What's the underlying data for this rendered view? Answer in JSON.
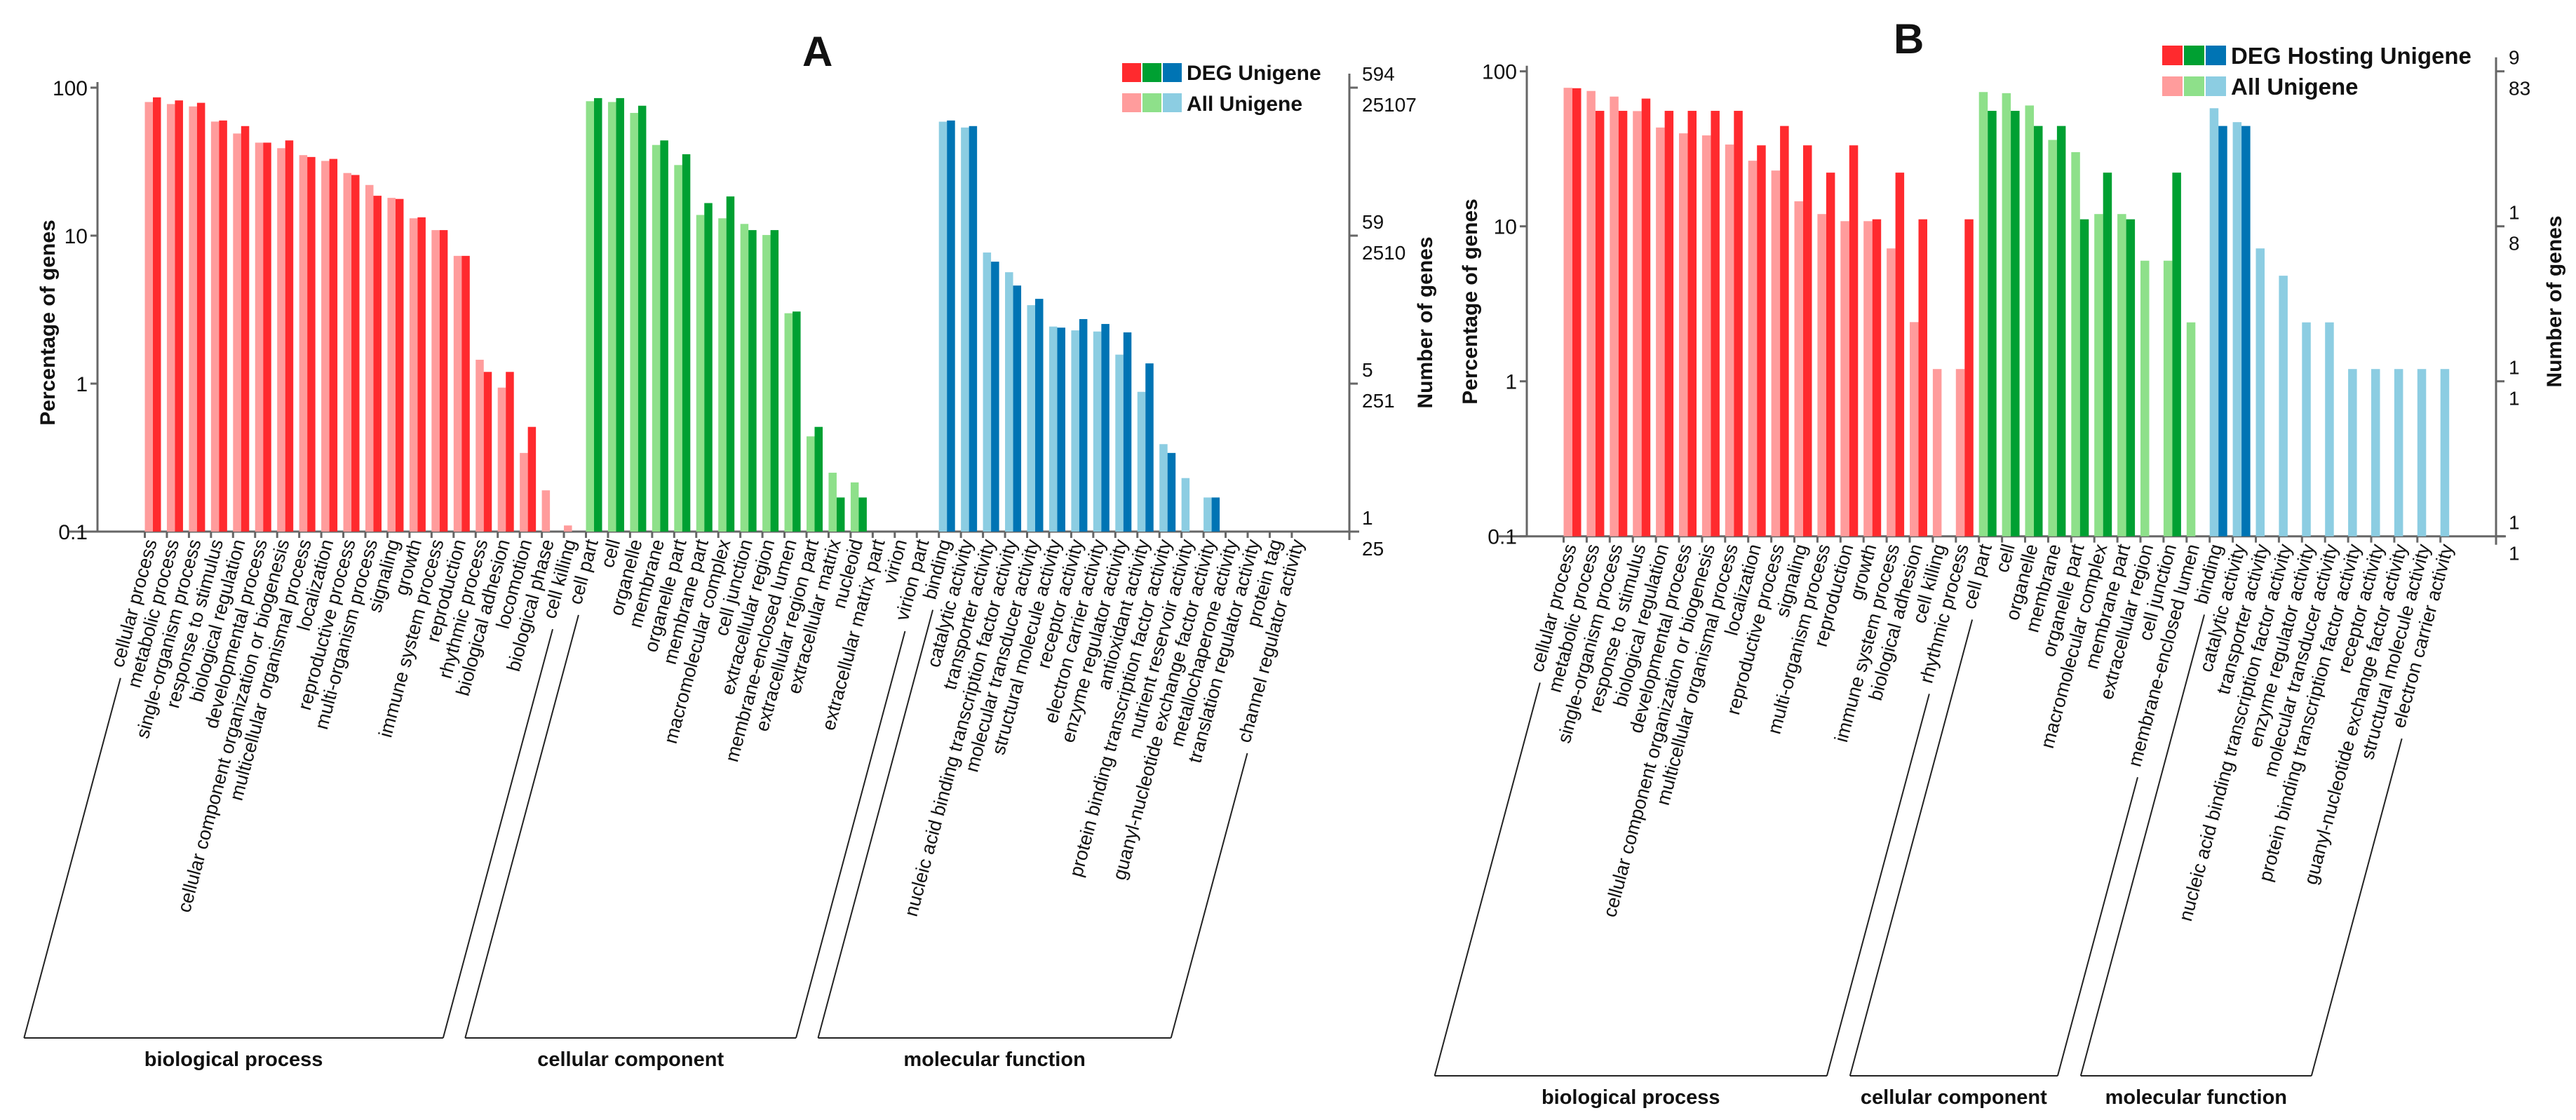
{
  "chart_data": [
    {
      "panel": "A",
      "type": "bar",
      "title": "A",
      "yscale": "log",
      "ylim": [
        0.1,
        100
      ],
      "ylabel": "Percentage of genes",
      "ylabel_right": "Number of genes",
      "yticks": [
        "100",
        "10",
        "1",
        "0.1"
      ],
      "right_ticks": [
        {
          "top": "594",
          "bottom": "25107"
        },
        {
          "top": "59",
          "bottom": "2510"
        },
        {
          "top": "5",
          "bottom": "251"
        },
        {
          "top": "1",
          "bottom": "25"
        }
      ],
      "right_top_color": "#3300ff",
      "legend": {
        "placement": "top-right",
        "deg_label": "DEG Unigene",
        "deg_label_color": "#3300ff",
        "all_label": "All Unigene"
      },
      "groups": [
        {
          "name": "biological process",
          "color_deg": "#ff2a2e",
          "color_all": "#ff9c9c",
          "categories": [
            "cellular process",
            "metabolic process",
            "single-organism process",
            "response to stimulus",
            "biological regulation",
            "developmental process",
            "cellular component organization or biogenesis",
            "multicellular organismal process",
            "localization",
            "reproductive process",
            "multi-organism process",
            "signaling",
            "growth",
            "immune system process",
            "reproduction",
            "rhythmic process",
            "biological adhesion",
            "locomotion",
            "biological phase",
            "cell killing"
          ],
          "all": [
            80,
            77.5,
            74.7,
            59,
            49,
            42.5,
            39,
            35,
            32,
            26.5,
            22,
            18,
            13.1,
            10.9,
            7.3,
            1.45,
            0.94,
            0.34,
            0.19,
            0.11
          ],
          "deg": [
            86,
            82,
            79,
            60,
            55,
            42.5,
            44,
            34,
            33,
            25.7,
            18.6,
            17.7,
            13.3,
            10.9,
            7.3,
            1.2,
            1.2,
            0.51,
            null,
            null
          ]
        },
        {
          "name": "cellular component",
          "color_deg": "#00a032",
          "color_all": "#8ee08a",
          "categories": [
            "cell part",
            "cell",
            "organelle",
            "membrane",
            "organelle part",
            "membrane part",
            "macromolecular complex",
            "cell junction",
            "extracellular region",
            "membrane-enclosed lumen",
            "extracellular region part",
            "extracellular matrix",
            "nucleoid",
            "extracellular matrix part",
            "virion",
            "virion part"
          ],
          "all": [
            81,
            80,
            67.5,
            41,
            30,
            13.8,
            13.1,
            12,
            10.1,
            2.99,
            0.44,
            0.25,
            0.215,
            null,
            null,
            null
          ],
          "deg": [
            85,
            85,
            75.5,
            44,
            35.5,
            16.6,
            18.4,
            10.9,
            10.9,
            3.07,
            0.51,
            0.17,
            0.17,
            null,
            null,
            null
          ]
        },
        {
          "name": "molecular function",
          "color_deg": "#0074b4",
          "color_all": "#8ccde2",
          "categories": [
            "binding",
            "catalytic activity",
            "transporter activity",
            "nucleic acid binding transcription factor activity",
            "molecular transducer activity",
            "structural molecule activity",
            "receptor activity",
            "electron carrier activity",
            "enzyme regulator activity",
            "antioxidant activity",
            "protein binding transcription factor activity",
            "nutrient reservoir activity",
            "guanyl-nucleotide exchange factor activity",
            "metallochaperone activity",
            "translation regulator activity",
            "protein tag",
            "channel regulator activity"
          ],
          "all": [
            58.9,
            53.8,
            7.69,
            5.66,
            3.39,
            2.43,
            2.29,
            2.25,
            1.57,
            0.88,
            0.39,
            0.23,
            0.17,
            null,
            null,
            null,
            null
          ],
          "deg": [
            60,
            55,
            6.67,
            4.6,
            3.74,
            2.39,
            2.73,
            2.53,
            2.22,
            1.37,
            0.34,
            null,
            0.17,
            null,
            null,
            null,
            null
          ]
        }
      ]
    },
    {
      "panel": "B",
      "type": "bar",
      "title": "B",
      "yscale": "log",
      "ylim": [
        0.1,
        100
      ],
      "ylabel": "Percentage of genes",
      "ylabel_right": "Number of genes",
      "yticks": [
        "100",
        "10",
        "1",
        "0.1"
      ],
      "right_ticks": [
        {
          "top": "9",
          "bottom": "83"
        },
        {
          "top": "1",
          "bottom": "8"
        },
        {
          "top": "1",
          "bottom": "1"
        },
        {
          "top": "1",
          "bottom": "1"
        }
      ],
      "right_top_color": "#111111",
      "legend": {
        "placement": "top-right",
        "deg_label": "DEG Hosting Unigene",
        "deg_label_color": "#111111",
        "all_label": "All Unigene"
      },
      "groups": [
        {
          "name": "biological process",
          "color_deg": "#ff2a2e",
          "color_all": "#ff9c9c",
          "categories": [
            "cellular process",
            "metabolic process",
            "single-organism process",
            "response to stimulus",
            "biological regulation",
            "developmental process",
            "cellular component organization or biogenesis",
            "multicellular organismal process",
            "localization",
            "reproductive process",
            "signaling",
            "multi-organism process",
            "reproduction",
            "growth",
            "immune system process",
            "biological adhesion",
            "cell killing",
            "rhythmic process"
          ],
          "all": [
            78.3,
            74.7,
            68.7,
            55.4,
            43.4,
            39.8,
            38.6,
            33.7,
            26.5,
            22.9,
            14.5,
            12.0,
            10.8,
            10.8,
            7.2,
            2.41,
            1.2,
            1.2
          ],
          "deg": [
            77.8,
            55.6,
            55.6,
            66.7,
            55.6,
            55.6,
            55.6,
            55.6,
            33.3,
            44.4,
            33.3,
            22.2,
            33.3,
            11.1,
            22.2,
            11.1,
            null,
            11.1
          ]
        },
        {
          "name": "cellular component",
          "color_deg": "#00a032",
          "color_all": "#8ee08a",
          "categories": [
            "cell part",
            "cell",
            "organelle",
            "membrane",
            "organelle part",
            "macromolecular complex",
            "membrane part",
            "extracellular region",
            "cell junction",
            "membrane-enclosed lumen"
          ],
          "all": [
            73.5,
            72.3,
            60.2,
            36.1,
            30.1,
            12.0,
            12.0,
            6.0,
            6.0,
            2.4
          ],
          "deg": [
            55.6,
            55.6,
            44.4,
            44.4,
            11.1,
            22.2,
            11.1,
            null,
            22.2,
            null
          ]
        },
        {
          "name": "molecular function",
          "color_deg": "#0074b4",
          "color_all": "#8ccde2",
          "categories": [
            "binding",
            "catalytic activity",
            "transporter activity",
            "nucleic acid binding transcription factor activity",
            "enzyme regulator activity",
            "molecular transducer activity",
            "protein binding transcription factor activity",
            "receptor activity",
            "guanyl-nucleotide exchange factor activity",
            "structural molecule activity",
            "electron carrier activity"
          ],
          "all": [
            57.8,
            47.0,
            7.2,
            4.8,
            2.4,
            2.4,
            1.2,
            1.2,
            1.2,
            1.2,
            1.2
          ],
          "deg": [
            44.4,
            44.4,
            null,
            null,
            null,
            null,
            null,
            null,
            null,
            null,
            null
          ]
        }
      ]
    }
  ]
}
